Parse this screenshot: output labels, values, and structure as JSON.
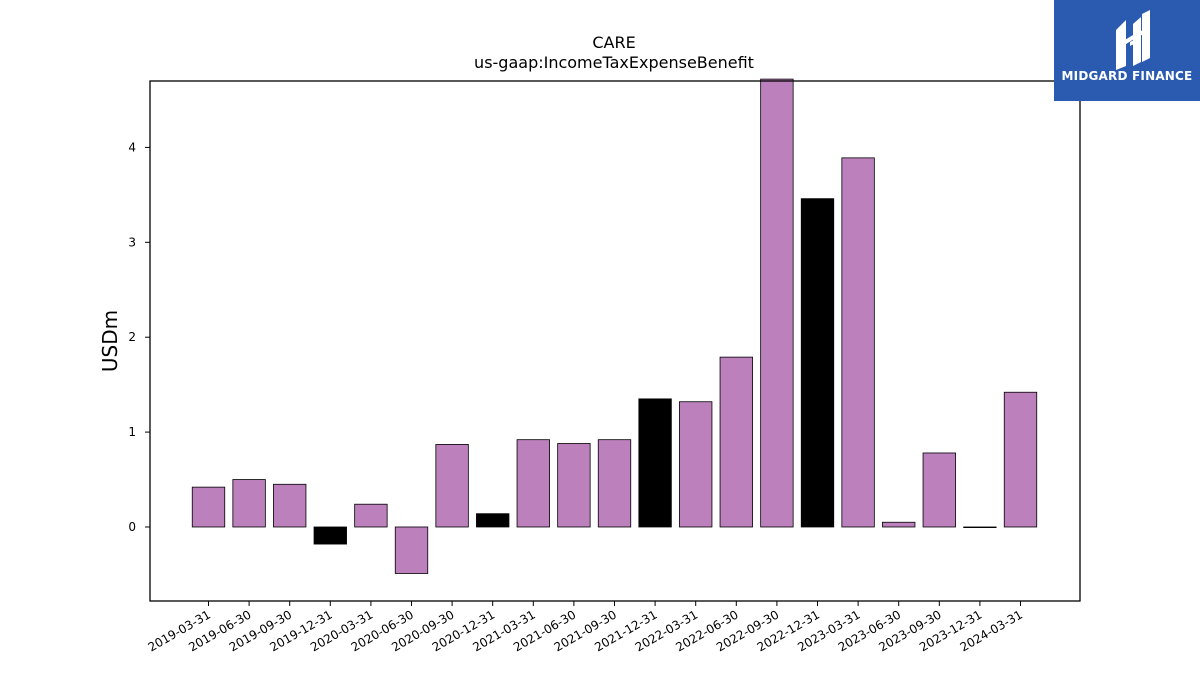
{
  "chart_data": {
    "type": "bar",
    "title": "CARE",
    "subtitle": "us-gaap:IncomeTaxExpenseBenefit",
    "xlabel": "",
    "ylabel": "USDm",
    "ylim": [
      -0.78,
      4.7
    ],
    "yticks": [
      0,
      1,
      2,
      3,
      4
    ],
    "grid": false,
    "categories": [
      "2019-03-31",
      "2019-06-30",
      "2019-09-30",
      "2019-12-31",
      "2020-03-31",
      "2020-06-30",
      "2020-09-30",
      "2020-12-31",
      "2021-03-31",
      "2021-06-30",
      "2021-09-30",
      "2021-12-31",
      "2022-03-31",
      "2022-06-30",
      "2022-09-30",
      "2022-12-31",
      "2023-03-31",
      "2023-06-30",
      "2023-09-30",
      "2023-12-31",
      "2024-03-31"
    ],
    "values": [
      0.42,
      0.5,
      0.45,
      -0.18,
      0.24,
      -0.49,
      0.87,
      0.14,
      0.92,
      0.88,
      0.92,
      1.35,
      1.32,
      1.79,
      4.72,
      3.46,
      3.89,
      0.05,
      0.78,
      0.0,
      1.42
    ],
    "bar_colors": [
      "purple",
      "purple",
      "purple",
      "black",
      "purple",
      "purple",
      "purple",
      "black",
      "purple",
      "purple",
      "purple",
      "black",
      "purple",
      "purple",
      "purple",
      "black",
      "purple",
      "purple",
      "purple",
      "black",
      "purple"
    ],
    "colors": {
      "purple": "#bc80bd",
      "black": "#000000",
      "edge": "#000000"
    }
  },
  "logo": {
    "text": "MIDGARD FINANCE",
    "background": "#2b5bb0"
  }
}
